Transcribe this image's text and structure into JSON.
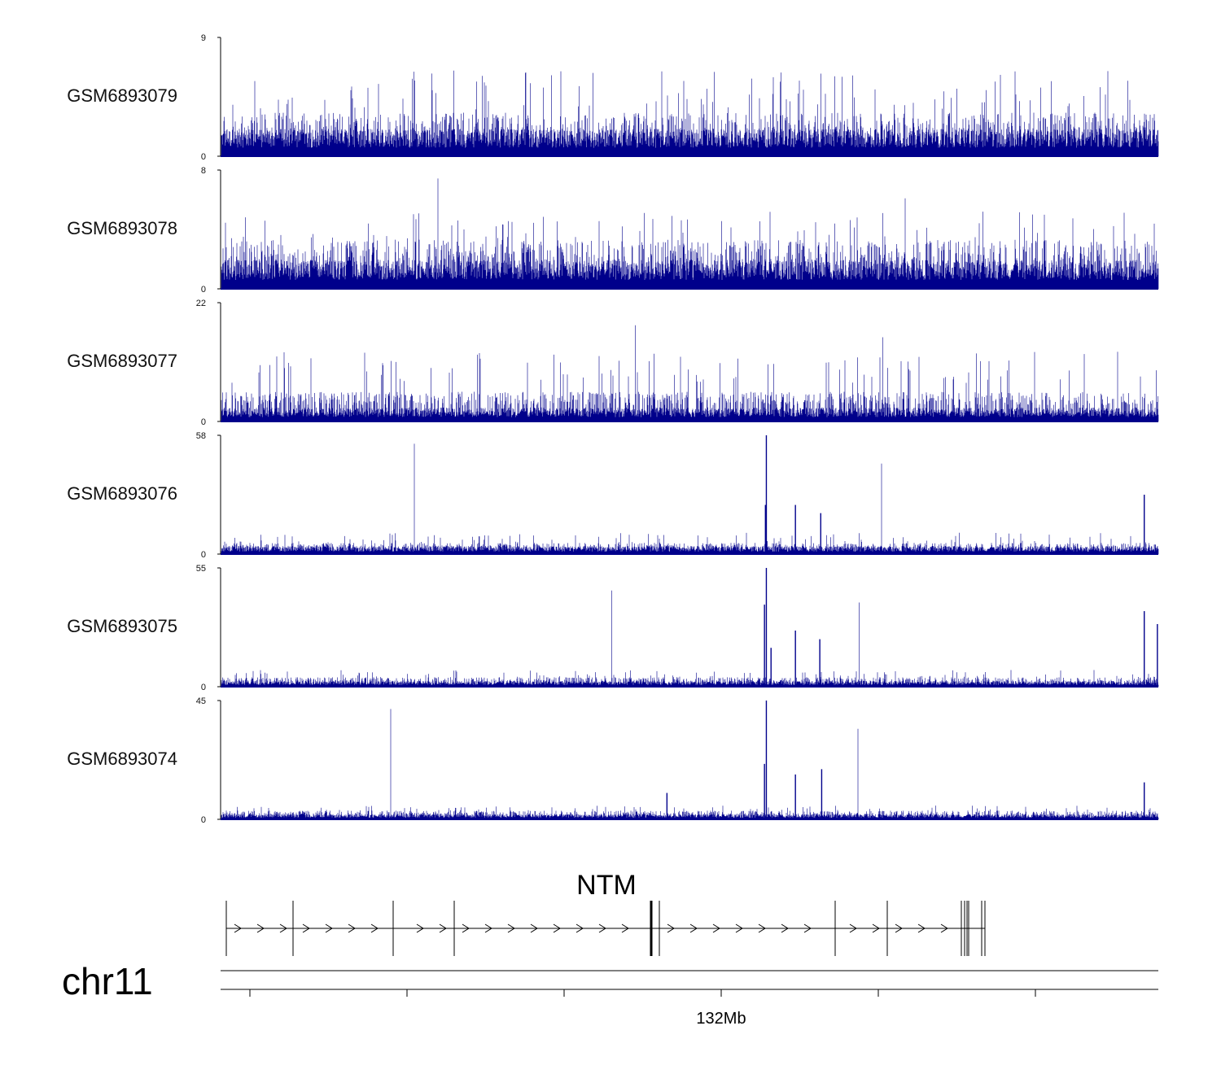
{
  "chart_data": {
    "type": "genome-browser-coverage",
    "color": "#00008B",
    "chromosome": "chr11",
    "gene": "NTM",
    "axis": {
      "label": "132Mb",
      "tick_count": 6
    },
    "tracks": [
      {
        "name": "GSM6893079",
        "ymax": 9,
        "ymin": 0,
        "baseline": 1.6,
        "band": 3,
        "spike": 5,
        "peaks": []
      },
      {
        "name": "GSM6893078",
        "ymax": 8,
        "ymin": 0,
        "baseline": 1.5,
        "band": 3,
        "spike": 4,
        "peaks": []
      },
      {
        "name": "GSM6893077",
        "ymax": 22,
        "ymin": 0,
        "baseline": 2,
        "band": 5,
        "spike": 10,
        "peaks": []
      },
      {
        "name": "GSM6893076",
        "ymax": 58,
        "ymin": 0,
        "baseline": 3,
        "band": 5,
        "spike": 8,
        "peaks": [
          {
            "pos": 0.582,
            "value": 58
          },
          {
            "pos": 0.581,
            "value": 24
          },
          {
            "pos": 0.613,
            "value": 24
          },
          {
            "pos": 0.64,
            "value": 20
          },
          {
            "pos": 0.985,
            "value": 29
          }
        ]
      },
      {
        "name": "GSM6893075",
        "ymax": 55,
        "ymin": 0,
        "baseline": 2,
        "band": 4,
        "spike": 6,
        "peaks": [
          {
            "pos": 0.582,
            "value": 55
          },
          {
            "pos": 0.58,
            "value": 38
          },
          {
            "pos": 0.587,
            "value": 18
          },
          {
            "pos": 0.613,
            "value": 26
          },
          {
            "pos": 0.639,
            "value": 22
          },
          {
            "pos": 0.985,
            "value": 35
          },
          {
            "pos": 0.999,
            "value": 29
          }
        ]
      },
      {
        "name": "GSM6893074",
        "ymax": 45,
        "ymin": 0,
        "baseline": 1.5,
        "band": 3,
        "spike": 4,
        "peaks": [
          {
            "pos": 0.582,
            "value": 45
          },
          {
            "pos": 0.58,
            "value": 21
          },
          {
            "pos": 0.613,
            "value": 17
          },
          {
            "pos": 0.641,
            "value": 19
          },
          {
            "pos": 0.476,
            "value": 10
          },
          {
            "pos": 0.985,
            "value": 14
          }
        ]
      }
    ]
  }
}
